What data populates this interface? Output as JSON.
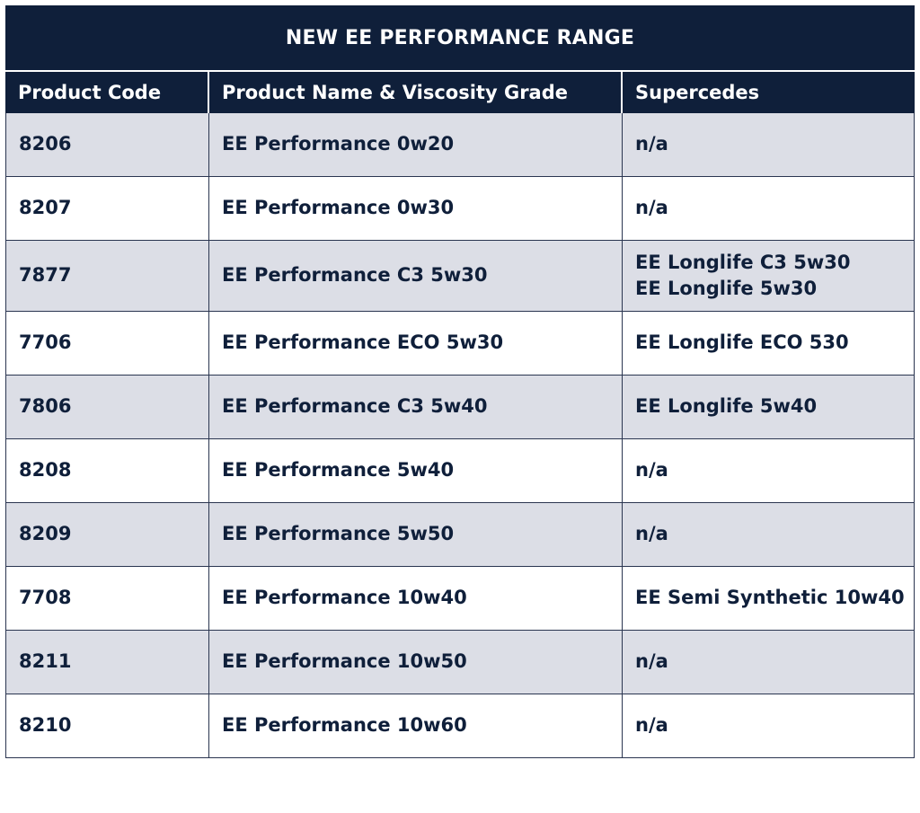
{
  "title": "NEW EE PERFORMANCE RANGE",
  "columns": [
    "Product Code",
    "Product Name & Viscosity Grade",
    "Supercedes"
  ],
  "rows": [
    {
      "code": "8206",
      "name": "EE Performance 0w20",
      "supercedes": [
        "n/a"
      ]
    },
    {
      "code": "8207",
      "name": "EE Performance 0w30",
      "supercedes": [
        "n/a"
      ]
    },
    {
      "code": "7877",
      "name": "EE Performance C3 5w30",
      "supercedes": [
        "EE Longlife C3 5w30",
        "EE Longlife 5w30"
      ]
    },
    {
      "code": "7706",
      "name": "EE Performance ECO 5w30",
      "supercedes": [
        "EE Longlife ECO 530"
      ]
    },
    {
      "code": "7806",
      "name": "EE Performance C3 5w40",
      "supercedes": [
        "EE Longlife 5w40"
      ]
    },
    {
      "code": "8208",
      "name": "EE Performance 5w40",
      "supercedes": [
        "n/a"
      ]
    },
    {
      "code": "8209",
      "name": "EE Performance 5w50",
      "supercedes": [
        "n/a"
      ]
    },
    {
      "code": "7708",
      "name": "EE Performance 10w40",
      "supercedes": [
        "EE Semi Synthetic 10w40"
      ]
    },
    {
      "code": "8211",
      "name": "EE Performance 10w50",
      "supercedes": [
        "n/a"
      ]
    },
    {
      "code": "8210",
      "name": "EE Performance 10w60",
      "supercedes": [
        "n/a"
      ]
    }
  ],
  "colors": {
    "header_bg": "#0f1f3a",
    "shaded_row_bg": "#dcdee6",
    "text": "#0f1f3a"
  }
}
